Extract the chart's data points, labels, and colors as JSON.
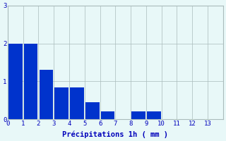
{
  "categories": [
    0,
    1,
    2,
    3,
    4,
    5,
    6,
    7,
    8,
    9,
    10,
    11,
    12,
    13
  ],
  "values": [
    2.0,
    2.0,
    1.3,
    0.85,
    0.85,
    0.45,
    0.22,
    0.0,
    0.22,
    0.22,
    0.0,
    0.0,
    0.0,
    0.0
  ],
  "bar_color": "#0033cc",
  "background_color": "#e8f8f8",
  "grid_color": "#aabbbb",
  "xlabel": "Précipitations 1h ( mm )",
  "ylim": [
    0,
    3
  ],
  "yticks": [
    0,
    1,
    2,
    3
  ],
  "bar_width": 0.9,
  "xlabel_fontsize": 7.5,
  "tick_fontsize": 6.5
}
